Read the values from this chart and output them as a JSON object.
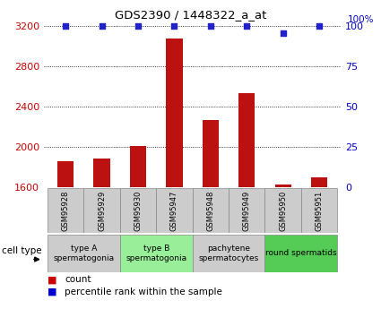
{
  "title": "GDS2390 / 1448322_a_at",
  "samples": [
    "GSM95928",
    "GSM95929",
    "GSM95930",
    "GSM95947",
    "GSM95948",
    "GSM95949",
    "GSM95950",
    "GSM95951"
  ],
  "counts": [
    1860,
    1880,
    2010,
    3080,
    2270,
    2530,
    1620,
    1700
  ],
  "percentile_ranks": [
    100,
    100,
    100,
    100,
    100,
    100,
    96,
    100
  ],
  "ylim_left": [
    1600,
    3200
  ],
  "ylim_right": [
    0,
    100
  ],
  "yticks_left": [
    1600,
    2000,
    2400,
    2800,
    3200
  ],
  "yticks_right": [
    0,
    25,
    50,
    75,
    100
  ],
  "bar_color": "#bb1111",
  "dot_color": "#2222cc",
  "cell_types": [
    {
      "label": "type A\nspermatogonia",
      "samples": [
        "GSM95928",
        "GSM95929"
      ],
      "color": "#cccccc"
    },
    {
      "label": "type B\nspermatogonia",
      "samples": [
        "GSM95930",
        "GSM95947"
      ],
      "color": "#99ee99"
    },
    {
      "label": "pachytene\nspermatocytes",
      "samples": [
        "GSM95948",
        "GSM95949"
      ],
      "color": "#cccccc"
    },
    {
      "label": "round spermatids",
      "samples": [
        "GSM95950",
        "GSM95951"
      ],
      "color": "#55cc55"
    }
  ],
  "ylabel_left_color": "#cc0000",
  "ylabel_right_color": "#0000cc",
  "legend_count_color": "#cc0000",
  "legend_pct_color": "#0000cc",
  "sample_box_color": "#cccccc",
  "grid_color": "#000000"
}
